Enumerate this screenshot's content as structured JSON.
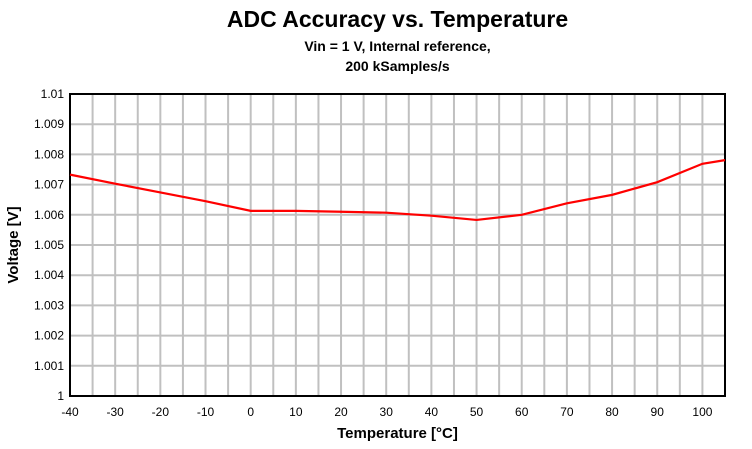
{
  "chart_data": {
    "type": "line",
    "title": "ADC Accuracy vs. Temperature",
    "subtitle": [
      "Vin = 1 V, Internal reference,",
      "200 kSamples/s"
    ],
    "xlabel": "Temperature [°C]",
    "ylabel": "Voltage [V]",
    "xlim": [
      -40,
      105
    ],
    "ylim": [
      1.0,
      1.01
    ],
    "grid": true,
    "x_ticks": [
      "-40",
      "-30",
      "-20",
      "-10",
      "0",
      "10",
      "20",
      "30",
      "40",
      "50",
      "60",
      "70",
      "80",
      "90",
      "100"
    ],
    "y_ticks": [
      "1",
      "1.001",
      "1.002",
      "1.003",
      "1.004",
      "1.005",
      "1.006",
      "1.007",
      "1.008",
      "1.009",
      "1.01"
    ],
    "series": [
      {
        "name": "Voltage",
        "color": "#ff0000",
        "x": [
          -40,
          -30,
          -20,
          -10,
          0,
          10,
          20,
          30,
          40,
          50,
          60,
          70,
          80,
          90,
          100,
          105
        ],
        "y": [
          1.00733,
          1.00703,
          1.00674,
          1.00645,
          1.00613,
          1.00613,
          1.0061,
          1.00607,
          1.00597,
          1.00583,
          1.006,
          1.00638,
          1.00666,
          1.00708,
          1.00769,
          1.00781
        ]
      }
    ]
  }
}
